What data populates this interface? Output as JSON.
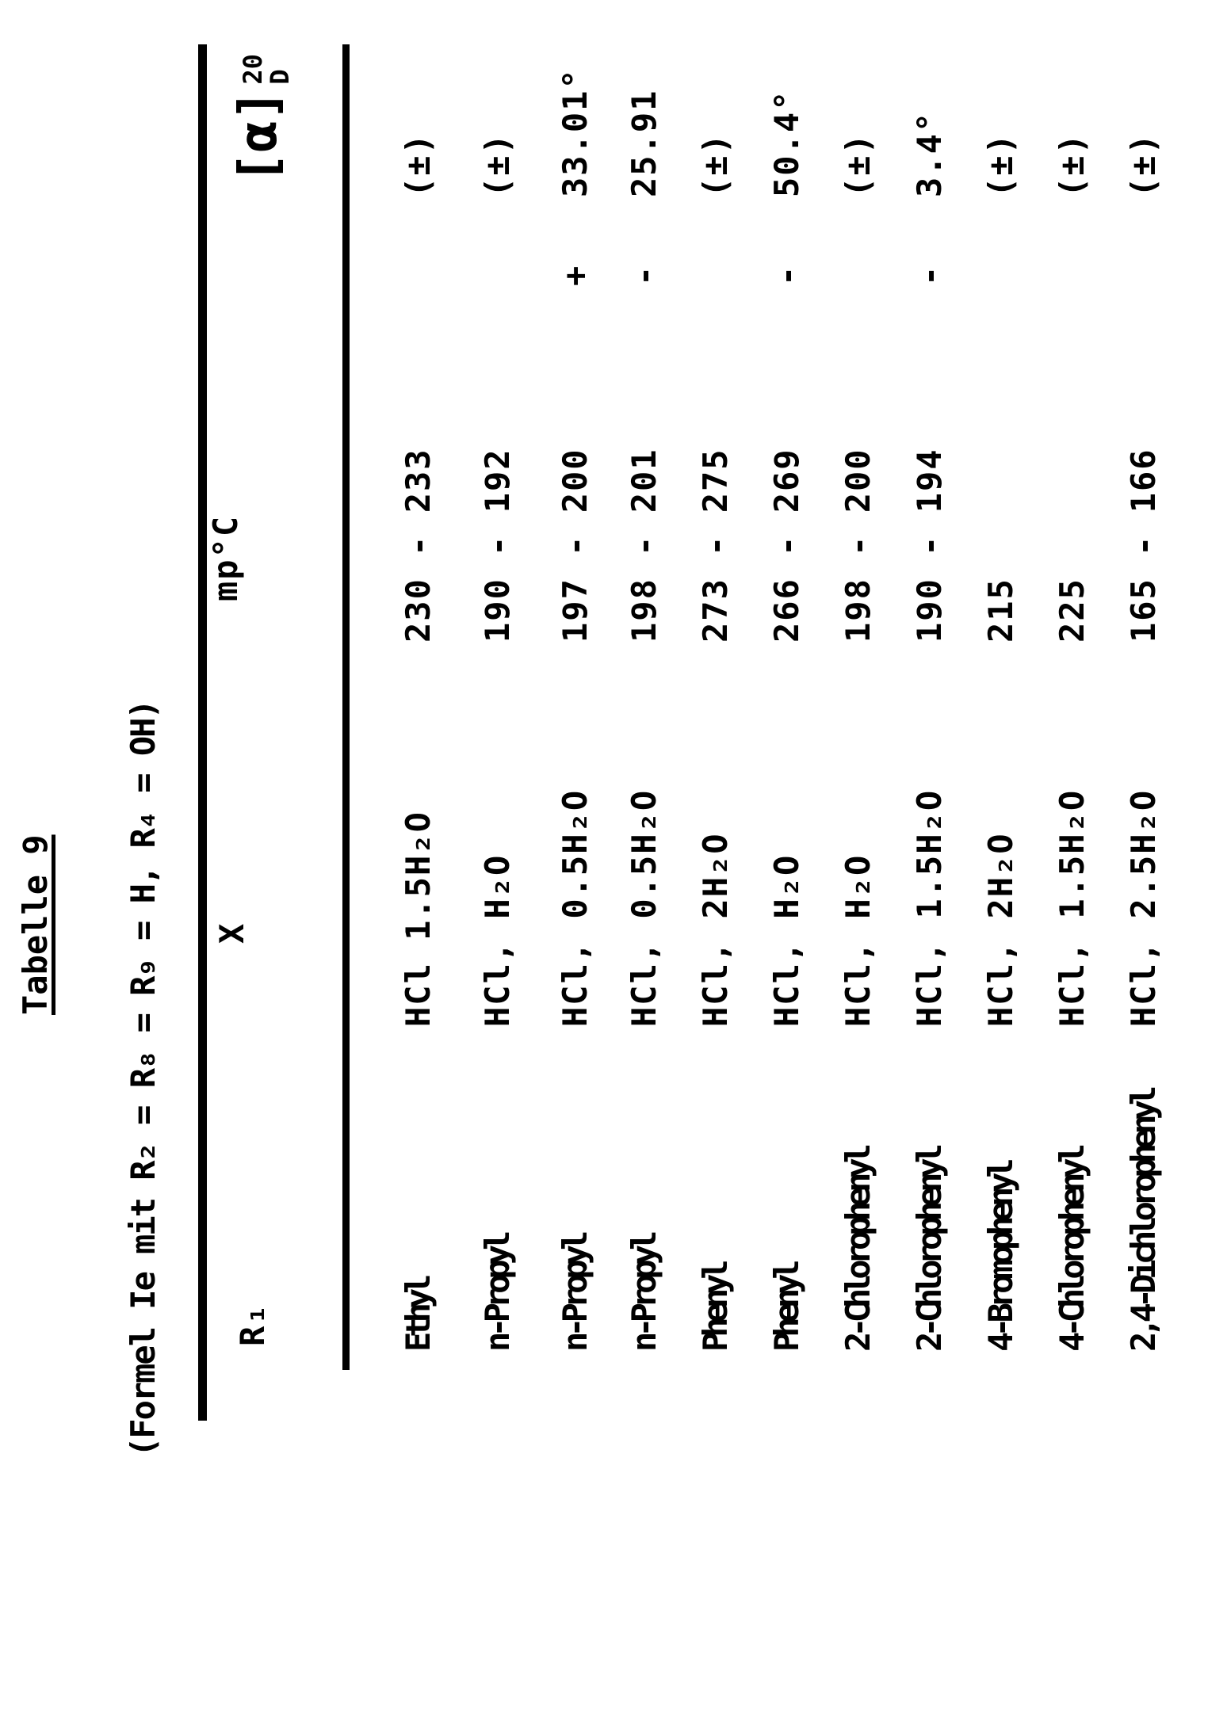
{
  "page": {
    "title": "Tabelle 9",
    "formula": "(Formel Ie mit R₂ = R₈ = R₉ = H, R₄ = OH)"
  },
  "table": {
    "columns": {
      "r1": "R₁",
      "x": "X",
      "mp": "mp°C",
      "alpha_bracket": "[α]",
      "alpha_sup": "20",
      "alpha_sub": "D"
    },
    "rows": [
      {
        "r1": "Ethyl",
        "x": "HCl 1.5H₂O",
        "mp": "230 - 233",
        "alpha_sign": "",
        "alpha_value": "(±)"
      },
      {
        "r1": "n-Propyl",
        "x": "HCl, H₂O",
        "mp": "190 - 192",
        "alpha_sign": "",
        "alpha_value": "(±)"
      },
      {
        "r1": "n-Propyl",
        "x": "HCl, 0.5H₂O",
        "mp": "197 - 200",
        "alpha_sign": "+",
        "alpha_value": "33.01°"
      },
      {
        "r1": "n-Propyl",
        "x": "HCl, 0.5H₂O",
        "mp": "198 - 201",
        "alpha_sign": "-",
        "alpha_value": "25.91"
      },
      {
        "r1": "Phenyl",
        "x": "HCl, 2H₂O",
        "mp": "273 - 275",
        "alpha_sign": "",
        "alpha_value": "(±)"
      },
      {
        "r1": "Phenyl",
        "x": "HCl, H₂O",
        "mp": "266 - 269",
        "alpha_sign": "-",
        "alpha_value": "50.4°"
      },
      {
        "r1": "2-Chlorophenyl",
        "x": "HCl, H₂O",
        "mp": "198 - 200",
        "alpha_sign": "",
        "alpha_value": "(±)"
      },
      {
        "r1": "2-Chlorophenyl",
        "x": "HCl, 1.5H₂O",
        "mp": "190 - 194",
        "alpha_sign": "-",
        "alpha_value": "3.4°"
      },
      {
        "r1": "4-Bromophenyl",
        "x": "HCl, 2H₂O",
        "mp": "215",
        "alpha_sign": "",
        "alpha_value": "(±)"
      },
      {
        "r1": "4-Chlorophenyl",
        "x": "HCl, 1.5H₂O",
        "mp": "225",
        "alpha_sign": "",
        "alpha_value": "(±)"
      },
      {
        "r1": "2,4-Dichlorophenyl",
        "x": "HCl, 2.5H₂O",
        "mp": "165 - 166",
        "alpha_sign": "",
        "alpha_value": "(±)"
      }
    ]
  }
}
